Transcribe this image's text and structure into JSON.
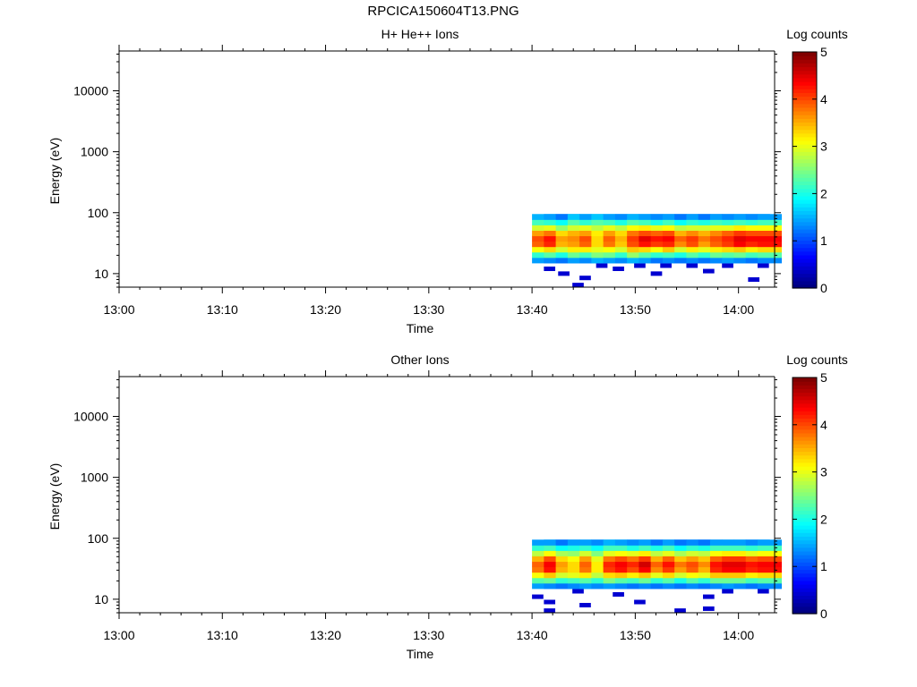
{
  "page": {
    "title": "RPCICA150604T13.PNG"
  },
  "chart_data": [
    {
      "type": "heatmap",
      "title": "H+ He++ Ions",
      "xlabel": "Time",
      "ylabel": "Energy (eV)",
      "x_ticks": [
        "13:00",
        "13:10",
        "13:20",
        "13:30",
        "13:40",
        "13:50",
        "14:00"
      ],
      "y_ticks": [
        "10",
        "100",
        "1000",
        "10000"
      ],
      "y_scale": "log",
      "ylim": [
        6,
        45000
      ],
      "xlim": [
        "13:00",
        "14:03.5"
      ],
      "colorbar": {
        "label": "Log counts",
        "ticks": [
          "0",
          "1",
          "2",
          "3",
          "4",
          "5"
        ],
        "range": [
          0,
          5
        ],
        "colormap": "jet"
      },
      "data_time_range": [
        "13:40",
        "14:03"
      ],
      "data_energy_range_ev": [
        15,
        95
      ],
      "bins": [
        {
          "t": 13.3,
          "vals": [
            1.4,
            2.1,
            3.1,
            3.9,
            4.0,
            3.6,
            2.9,
            2.2,
            1.5
          ]
        },
        {
          "t": 13.8,
          "vals": [
            1.3,
            2.3,
            3.3,
            4.2,
            4.3,
            3.8,
            3.0,
            2.1,
            1.4
          ]
        },
        {
          "t": 14.3,
          "vals": [
            1.2,
            2.0,
            2.9,
            3.5,
            3.6,
            3.3,
            2.6,
            1.9,
            1.2
          ]
        },
        {
          "t": 14.8,
          "vals": [
            1.4,
            2.4,
            3.2,
            3.6,
            3.7,
            3.5,
            2.9,
            2.3,
            1.6
          ]
        },
        {
          "t": 15.3,
          "vals": [
            1.3,
            2.2,
            3.2,
            3.9,
            4.0,
            3.6,
            3.0,
            2.1,
            1.4
          ]
        },
        {
          "t": 15.8,
          "vals": [
            1.5,
            2.5,
            3.0,
            3.3,
            3.3,
            3.2,
            2.8,
            2.3,
            1.6
          ]
        },
        {
          "t": 16.3,
          "vals": [
            1.4,
            2.4,
            3.1,
            3.8,
            3.9,
            3.6,
            3.0,
            2.2,
            1.4
          ]
        },
        {
          "t": 16.8,
          "vals": [
            1.3,
            2.1,
            2.9,
            3.4,
            3.5,
            3.3,
            2.8,
            2.0,
            1.3
          ]
        },
        {
          "t": 17.3,
          "vals": [
            1.5,
            2.6,
            3.4,
            4.0,
            4.1,
            3.8,
            3.1,
            2.3,
            1.5
          ]
        },
        {
          "t": 17.8,
          "vals": [
            1.4,
            2.3,
            3.3,
            4.3,
            4.5,
            4.0,
            3.2,
            2.2,
            1.4
          ]
        },
        {
          "t": 18.3,
          "vals": [
            1.2,
            2.1,
            3.1,
            4.1,
            4.3,
            3.9,
            3.0,
            2.0,
            1.3
          ]
        },
        {
          "t": 18.8,
          "vals": [
            1.3,
            2.2,
            3.4,
            4.2,
            4.4,
            4.0,
            3.1,
            2.2,
            1.4
          ]
        },
        {
          "t": 19.3,
          "vals": [
            1.2,
            2.0,
            2.9,
            3.7,
            3.9,
            3.5,
            2.8,
            1.9,
            1.2
          ]
        },
        {
          "t": 19.8,
          "vals": [
            1.3,
            2.3,
            3.2,
            4.0,
            4.1,
            3.7,
            2.9,
            2.1,
            1.4
          ]
        },
        {
          "t": 20.3,
          "vals": [
            1.2,
            2.1,
            3.0,
            3.6,
            3.8,
            3.5,
            2.9,
            2.0,
            1.2
          ]
        },
        {
          "t": 20.8,
          "vals": [
            1.3,
            2.4,
            3.2,
            3.9,
            4.0,
            3.7,
            3.0,
            2.2,
            1.4
          ]
        },
        {
          "t": 21.3,
          "vals": [
            1.4,
            2.3,
            3.3,
            4.1,
            4.2,
            3.9,
            3.0,
            2.1,
            1.3
          ]
        },
        {
          "t": 21.8,
          "vals": [
            1.3,
            2.4,
            3.4,
            4.4,
            4.5,
            4.1,
            3.2,
            2.2,
            1.4
          ]
        },
        {
          "t": 22.3,
          "vals": [
            1.2,
            2.2,
            3.2,
            4.2,
            4.4,
            4.0,
            3.1,
            2.1,
            1.3
          ]
        },
        {
          "t": 22.8,
          "vals": [
            1.3,
            2.3,
            3.3,
            4.3,
            4.4,
            4.0,
            3.1,
            2.2,
            1.4
          ]
        }
      ],
      "low_energy_specks": [
        {
          "t": 13.8,
          "e": 12
        },
        {
          "t": 14.4,
          "e": 10
        },
        {
          "t": 15.3,
          "e": 8.5
        },
        {
          "t": 16.7,
          "e": 12
        },
        {
          "t": 17.6,
          "e": 13.5
        },
        {
          "t": 18.3,
          "e": 10
        },
        {
          "t": 19.8,
          "e": 13.5
        },
        {
          "t": 20.5,
          "e": 11
        },
        {
          "t": 21.3,
          "e": 13.5
        },
        {
          "t": 22.4,
          "e": 8
        },
        {
          "t": 22.8,
          "e": 13.5
        },
        {
          "t": 15.0,
          "e": 6.5
        },
        {
          "t": 16.0,
          "e": 13.5
        },
        {
          "t": 18.7,
          "e": 13.5
        }
      ]
    },
    {
      "type": "heatmap",
      "title": "Other Ions",
      "xlabel": "Time",
      "ylabel": "Energy (eV)",
      "x_ticks": [
        "13:00",
        "13:10",
        "13:20",
        "13:30",
        "13:40",
        "13:50",
        "14:00"
      ],
      "y_ticks": [
        "10",
        "100",
        "1000",
        "10000"
      ],
      "y_scale": "log",
      "ylim": [
        6,
        45000
      ],
      "xlim": [
        "13:00",
        "14:03.5"
      ],
      "colorbar": {
        "label": "Log counts",
        "ticks": [
          "0",
          "1",
          "2",
          "3",
          "4",
          "5"
        ],
        "range": [
          0,
          5
        ],
        "colormap": "jet"
      },
      "data_time_range": [
        "13:40",
        "14:03"
      ],
      "data_energy_range_ev": [
        15,
        95
      ],
      "bins": [
        {
          "t": 13.3,
          "vals": [
            1.4,
            2.3,
            3.1,
            3.8,
            3.9,
            3.5,
            2.8,
            2.1,
            1.4
          ]
        },
        {
          "t": 13.8,
          "vals": [
            1.3,
            2.4,
            3.4,
            4.3,
            4.4,
            4.0,
            3.1,
            2.2,
            1.4
          ]
        },
        {
          "t": 14.3,
          "vals": [
            1.2,
            2.1,
            2.9,
            3.5,
            3.6,
            3.3,
            2.7,
            1.9,
            1.2
          ]
        },
        {
          "t": 14.8,
          "vals": [
            1.3,
            2.2,
            3.0,
            3.3,
            3.3,
            3.1,
            2.6,
            2.0,
            1.4
          ]
        },
        {
          "t": 15.3,
          "vals": [
            1.4,
            2.3,
            3.2,
            3.8,
            3.9,
            3.6,
            2.9,
            2.1,
            1.4
          ]
        },
        {
          "t": 15.8,
          "vals": [
            1.3,
            2.1,
            2.8,
            3.2,
            3.2,
            3.0,
            2.5,
            1.9,
            1.3
          ]
        },
        {
          "t": 16.3,
          "vals": [
            1.4,
            2.5,
            3.3,
            4.1,
            4.2,
            3.8,
            3.0,
            2.2,
            1.5
          ]
        },
        {
          "t": 16.8,
          "vals": [
            1.3,
            2.3,
            3.4,
            4.3,
            4.4,
            4.0,
            3.1,
            2.2,
            1.4
          ]
        },
        {
          "t": 17.3,
          "vals": [
            1.2,
            2.2,
            3.2,
            4.0,
            4.2,
            3.8,
            3.0,
            2.0,
            1.3
          ]
        },
        {
          "t": 17.8,
          "vals": [
            1.3,
            2.4,
            3.4,
            4.4,
            4.6,
            4.1,
            3.2,
            2.2,
            1.4
          ]
        },
        {
          "t": 18.3,
          "vals": [
            1.2,
            2.1,
            3.0,
            3.7,
            3.9,
            3.5,
            2.8,
            2.0,
            1.2
          ]
        },
        {
          "t": 18.8,
          "vals": [
            1.3,
            2.3,
            3.3,
            4.1,
            4.3,
            3.9,
            3.0,
            2.2,
            1.4
          ]
        },
        {
          "t": 19.3,
          "vals": [
            1.2,
            2.0,
            2.9,
            3.6,
            3.8,
            3.4,
            2.7,
            1.9,
            1.2
          ]
        },
        {
          "t": 19.8,
          "vals": [
            1.3,
            2.3,
            3.1,
            3.9,
            4.0,
            3.6,
            2.9,
            2.1,
            1.3
          ]
        },
        {
          "t": 20.3,
          "vals": [
            1.2,
            2.1,
            3.0,
            3.5,
            3.7,
            3.4,
            2.8,
            2.0,
            1.2
          ]
        },
        {
          "t": 20.8,
          "vals": [
            1.3,
            2.4,
            3.4,
            4.2,
            4.3,
            3.9,
            3.1,
            2.2,
            1.4
          ]
        },
        {
          "t": 21.3,
          "vals": [
            1.4,
            2.4,
            3.4,
            4.4,
            4.5,
            4.1,
            3.2,
            2.2,
            1.4
          ]
        },
        {
          "t": 21.8,
          "vals": [
            1.3,
            2.4,
            3.4,
            4.4,
            4.5,
            4.1,
            3.2,
            2.2,
            1.4
          ]
        },
        {
          "t": 22.3,
          "vals": [
            1.2,
            2.2,
            3.2,
            4.2,
            4.3,
            3.9,
            3.0,
            2.1,
            1.3
          ]
        },
        {
          "t": 22.8,
          "vals": [
            1.3,
            2.3,
            3.3,
            4.3,
            4.4,
            4.0,
            3.1,
            2.2,
            1.4
          ]
        }
      ],
      "low_energy_specks": [
        {
          "t": 13.3,
          "e": 11
        },
        {
          "t": 13.8,
          "e": 9
        },
        {
          "t": 15.3,
          "e": 8
        },
        {
          "t": 16.7,
          "e": 12
        },
        {
          "t": 17.6,
          "e": 9
        },
        {
          "t": 19.3,
          "e": 6.5
        },
        {
          "t": 20.5,
          "e": 11
        },
        {
          "t": 20.5,
          "e": 7
        },
        {
          "t": 22.8,
          "e": 13.5
        },
        {
          "t": 13.8,
          "e": 6.5
        },
        {
          "t": 15.0,
          "e": 13.5
        },
        {
          "t": 21.3,
          "e": 13.5
        }
      ]
    }
  ]
}
